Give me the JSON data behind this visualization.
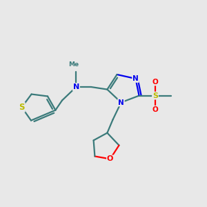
{
  "background_color": "#e8e8e8",
  "bond_color": "#3a7a7a",
  "bond_width": 1.6,
  "atom_colors": {
    "N": "#0000ee",
    "S": "#bbbb00",
    "O": "#ff0000",
    "C": "#3a7a7a"
  },
  "figsize": [
    3.0,
    3.0
  ],
  "dpi": 100,
  "xlim": [
    0,
    10
  ],
  "ylim": [
    0,
    10
  ]
}
